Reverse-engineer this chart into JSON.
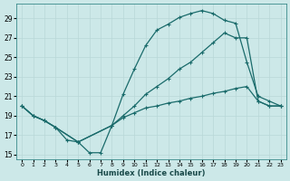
{
  "xlabel": "Humidex (Indice chaleur)",
  "ylabel": "",
  "xlim": [
    -0.5,
    23.5
  ],
  "ylim": [
    14.5,
    30.5
  ],
  "xticks": [
    0,
    1,
    2,
    3,
    4,
    5,
    6,
    7,
    8,
    9,
    10,
    11,
    12,
    13,
    14,
    15,
    16,
    17,
    18,
    19,
    20,
    21,
    22,
    23
  ],
  "yticks": [
    15,
    17,
    19,
    21,
    23,
    25,
    27,
    29
  ],
  "bg_color": "#cce8e8",
  "line_color": "#1a6b6b",
  "grid_color": "#b8d8d8",
  "line1_x": [
    0,
    1,
    2,
    3,
    4,
    5,
    6,
    7,
    8,
    9,
    10,
    11,
    12,
    13,
    14,
    15,
    16,
    17,
    18,
    19,
    20,
    21,
    22,
    23
  ],
  "line1_y": [
    20.0,
    19.0,
    18.5,
    17.8,
    16.5,
    16.3,
    15.2,
    15.2,
    18.0,
    21.2,
    23.8,
    26.2,
    27.8,
    28.4,
    29.1,
    29.5,
    29.8,
    29.5,
    28.8,
    28.5,
    24.5,
    21.0,
    20.5,
    20.0
  ],
  "line2_x": [
    0,
    1,
    2,
    3,
    5,
    8,
    9,
    10,
    11,
    12,
    13,
    14,
    15,
    16,
    17,
    18,
    19,
    20,
    21,
    22,
    23
  ],
  "line2_y": [
    20.0,
    19.0,
    18.5,
    17.8,
    16.3,
    18.0,
    19.0,
    20.0,
    21.2,
    22.0,
    22.8,
    23.8,
    24.5,
    25.5,
    26.5,
    27.5,
    27.0,
    27.0,
    20.5,
    20.0,
    20.0
  ],
  "line3_x": [
    0,
    1,
    2,
    3,
    5,
    8,
    9,
    10,
    11,
    12,
    13,
    14,
    15,
    16,
    17,
    18,
    19,
    20,
    21,
    22,
    23
  ],
  "line3_y": [
    20.0,
    19.0,
    18.5,
    17.8,
    16.3,
    18.0,
    18.8,
    19.3,
    19.8,
    20.0,
    20.3,
    20.5,
    20.8,
    21.0,
    21.3,
    21.5,
    21.8,
    22.0,
    20.5,
    20.0,
    20.0
  ]
}
